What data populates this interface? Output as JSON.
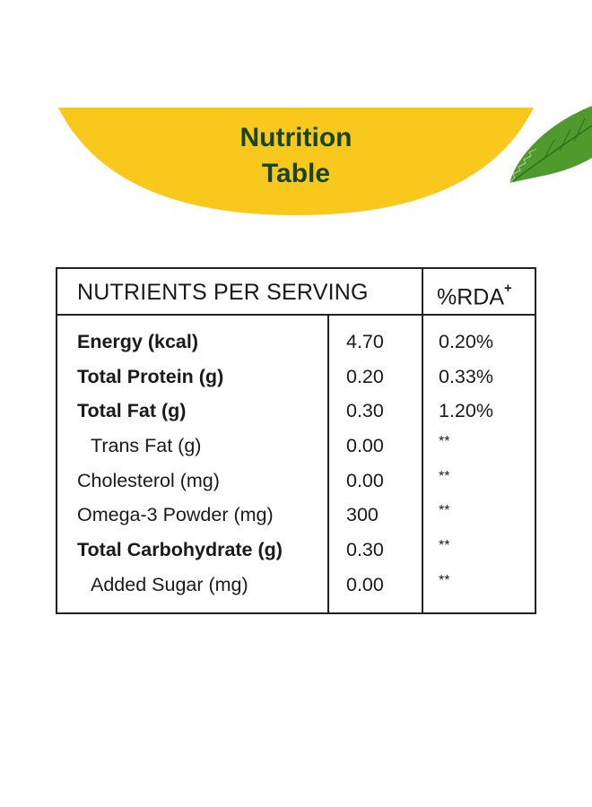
{
  "header": {
    "title_line1": "Nutrition",
    "title_line2": "Table",
    "arc_color": "#f9c81c",
    "title_color": "#16452a",
    "leaf_color": "#4f9a2c"
  },
  "table": {
    "heading_left": "NUTRIENTS PER SERVING",
    "heading_right": "%RDA",
    "heading_right_sup": "+",
    "rows": [
      {
        "name": "Energy (kcal)",
        "value": "4.70",
        "rda": "0.20%"
      },
      {
        "name": "Total Protein (g)",
        "value": "0.20",
        "rda": "0.33%"
      },
      {
        "name": "Total Fat (g)",
        "value": "0.30",
        "rda": "1.20%"
      },
      {
        "name": "Trans Fat (g)",
        "value": "0.00",
        "rda": "**"
      },
      {
        "name": "Cholesterol (mg)",
        "value": "0.00",
        "rda": "**"
      },
      {
        "name": "Omega-3 Powder (mg)",
        "value": "300",
        "rda": "**"
      },
      {
        "name": "Total Carbohydrate (g)",
        "value": "0.30",
        "rda": "**"
      },
      {
        "name": "Added Sugar (mg)",
        "value": "0.00",
        "rda": "**"
      }
    ]
  }
}
